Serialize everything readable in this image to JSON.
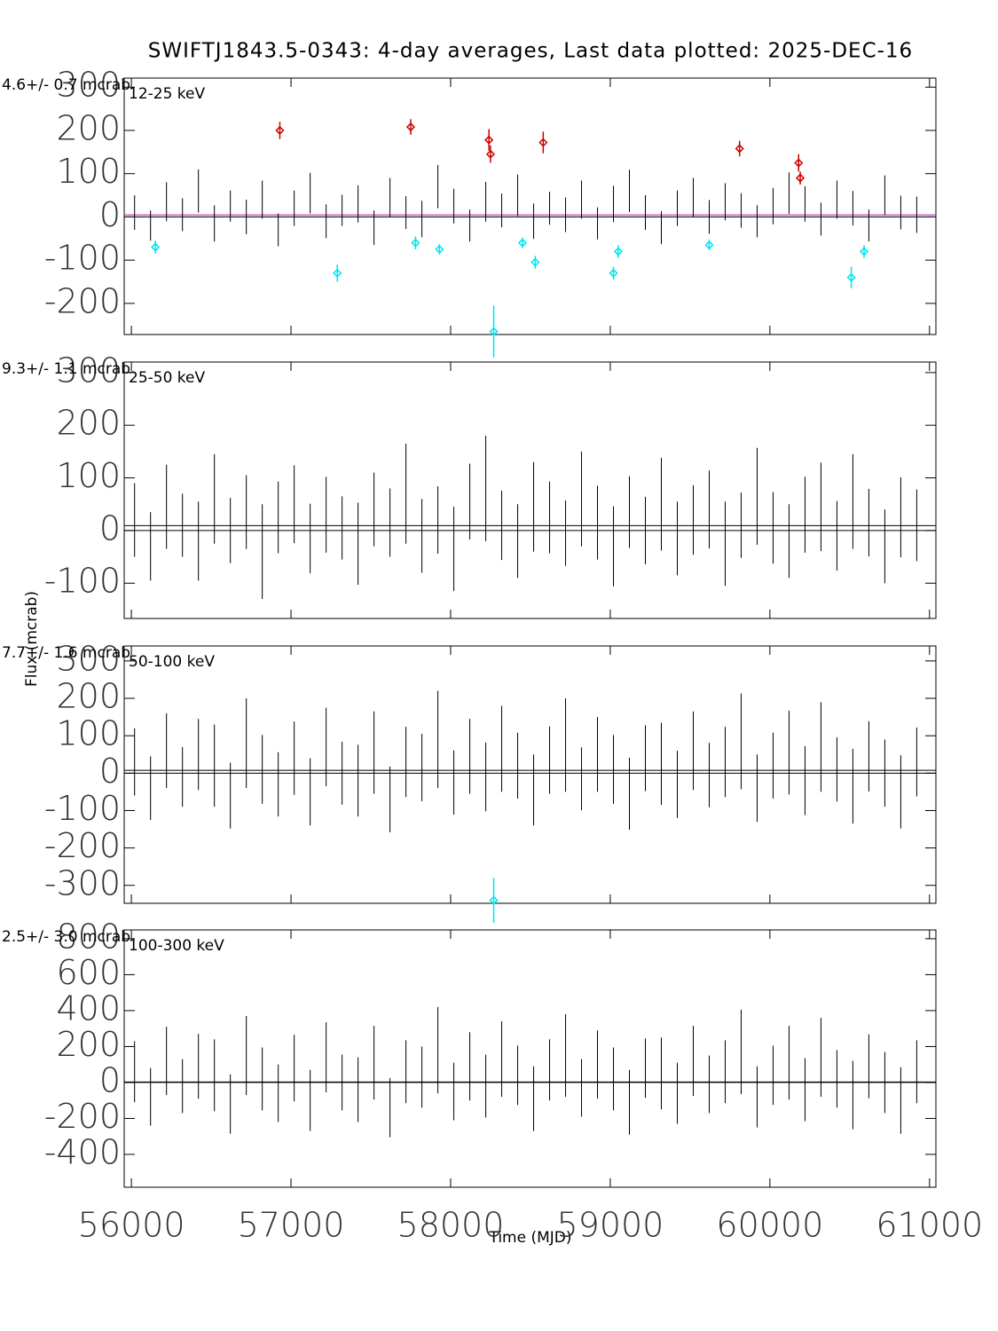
{
  "chart_data": {
    "type": "errorbar",
    "title": "SWIFTJ1843.5-0343:  4-day averages,  Last data plotted: 2025-DEC-16",
    "xlabel": "Time (MJD)",
    "ylabel": "Flux (mcrab)",
    "xlim": [
      55955,
      61040
    ],
    "xticks": [
      56000,
      57000,
      58000,
      59000,
      60000,
      61000
    ],
    "x": [
      56020,
      56120,
      56220,
      56320,
      56420,
      56520,
      56620,
      56720,
      56820,
      56920,
      57020,
      57120,
      57220,
      57320,
      57420,
      57520,
      57620,
      57720,
      57820,
      57920,
      58020,
      58120,
      58220,
      58320,
      58420,
      58520,
      58620,
      58720,
      58820,
      58920,
      59020,
      59120,
      59220,
      59320,
      59420,
      59520,
      59620,
      59720,
      59820,
      59920,
      60020,
      60120,
      60220,
      60320,
      60420,
      60520,
      60620,
      60720,
      60820,
      60920
    ],
    "panels": [
      {
        "band": "12-25 keV",
        "rate_label": "4.6+/- 0.7 mcrab",
        "mean": 4.6,
        "ylim": [
          -272,
          321
        ],
        "yticks": [
          -200,
          -100,
          0,
          100,
          200,
          300
        ],
        "values": [
          10,
          -20,
          35,
          5,
          60,
          -15,
          25,
          0,
          40,
          -30,
          20,
          55,
          -10,
          15,
          30,
          -25,
          45,
          10,
          -5,
          70,
          25,
          -20,
          35,
          15,
          50,
          -10,
          20,
          5,
          40,
          -15,
          30,
          60,
          10,
          -25,
          20,
          45,
          0,
          35,
          15,
          -10,
          25,
          55,
          30,
          -5,
          40,
          20,
          -20,
          50,
          10,
          5
        ],
        "errors": [
          40,
          35,
          45,
          38,
          50,
          42,
          36,
          40,
          44,
          38,
          41,
          47,
          39,
          36,
          43,
          40,
          45,
          38,
          42,
          50,
          40,
          37,
          46,
          39,
          48,
          41,
          38,
          40,
          44,
          37,
          42,
          49,
          40,
          38,
          41,
          45,
          39,
          43,
          40,
          37,
          42,
          48,
          41,
          38,
          44,
          40,
          37,
          46,
          39,
          42
        ],
        "highlights": [
          {
            "color": "#cc0000",
            "x": [
              56930,
              57750,
              58240,
              58250,
              58580,
              59810,
              60180,
              60190
            ],
            "values": [
              200,
              208,
              178,
              145,
              172,
              158,
              125,
              90
            ],
            "errors": [
              20,
              18,
              25,
              20,
              25,
              18,
              20,
              15
            ]
          },
          {
            "color": "#00e5ee",
            "x": [
              56150,
              57290,
              57780,
              57930,
              58270,
              58450,
              58530,
              59020,
              59050,
              59620,
              60510,
              60590
            ],
            "values": [
              -70,
              -130,
              -60,
              -75,
              -265,
              -60,
              -105,
              -130,
              -80,
              -65,
              -140,
              -80
            ],
            "errors": [
              15,
              20,
              15,
              12,
              60,
              12,
              15,
              15,
              15,
              12,
              25,
              15
            ]
          }
        ]
      },
      {
        "band": "25-50 keV",
        "rate_label": "9.3+/- 1.1 mcrab",
        "mean": 9.3,
        "ylim": [
          -167,
          320
        ],
        "yticks": [
          -100,
          0,
          100,
          200,
          300
        ],
        "values": [
          20,
          -30,
          45,
          10,
          -20,
          60,
          0,
          35,
          -40,
          25,
          50,
          -15,
          30,
          5,
          -25,
          40,
          15,
          70,
          -10,
          20,
          -35,
          55,
          80,
          10,
          -20,
          45,
          25,
          -5,
          60,
          15,
          -30,
          35,
          0,
          50,
          -15,
          20,
          40,
          -25,
          10,
          65,
          5,
          -20,
          30,
          45,
          -10,
          55,
          15,
          -30,
          25,
          10
        ],
        "errors": [
          70,
          65,
          80,
          60,
          75,
          85,
          62,
          70,
          90,
          68,
          74,
          66,
          72,
          60,
          78,
          70,
          65,
          95,
          70,
          64,
          80,
          72,
          100,
          66,
          70,
          85,
          68,
          62,
          90,
          70,
          76,
          68,
          64,
          88,
          70,
          66,
          74,
          80,
          62,
          92,
          68,
          70,
          72,
          84,
          66,
          90,
          64,
          70,
          76,
          68
        ],
        "highlights": []
      },
      {
        "band": "50-100 keV",
        "rate_label": "7.7+/- 1.6 mcrab",
        "mean": 7.7,
        "ylim": [
          -348,
          340
        ],
        "yticks": [
          -300,
          -200,
          -100,
          0,
          100,
          200,
          300
        ],
        "values": [
          30,
          -40,
          60,
          -10,
          50,
          20,
          -60,
          80,
          10,
          -30,
          40,
          -50,
          70,
          0,
          -20,
          55,
          -70,
          30,
          15,
          90,
          -25,
          45,
          -10,
          65,
          20,
          -45,
          35,
          75,
          -15,
          50,
          10,
          -55,
          40,
          25,
          -30,
          60,
          -5,
          30,
          85,
          -40,
          20,
          55,
          -20,
          70,
          10,
          -35,
          45,
          0,
          -50,
          30
        ],
        "errors": [
          90,
          85,
          100,
          80,
          95,
          110,
          88,
          120,
          92,
          86,
          98,
          90,
          105,
          84,
          96,
          110,
          88,
          94,
          90,
          130,
          86,
          100,
          92,
          115,
          88,
          95,
          90,
          125,
          84,
          100,
          92,
          96,
          88,
          110,
          90,
          105,
          86,
          94,
          128,
          90,
          88,
          112,
          92,
          120,
          86,
          100,
          94,
          90,
          98,
          92
        ],
        "highlights": [
          {
            "color": "#00e5ee",
            "x": [
              58270
            ],
            "values": [
              -340
            ],
            "errors": [
              60
            ]
          }
        ]
      },
      {
        "band": "100-300 keV",
        "rate_label": "2.5+/- 3.0 mcrab",
        "mean": 2.5,
        "ylim": [
          -583,
          849
        ],
        "yticks": [
          -400,
          -200,
          0,
          200,
          400,
          600,
          800
        ],
        "values": [
          60,
          -80,
          120,
          -20,
          90,
          40,
          -120,
          150,
          20,
          -60,
          80,
          -100,
          140,
          0,
          -40,
          110,
          -140,
          60,
          30,
          180,
          -50,
          90,
          -20,
          130,
          40,
          -90,
          70,
          150,
          -30,
          100,
          20,
          -110,
          80,
          50,
          -60,
          120,
          -10,
          60,
          170,
          -80,
          40,
          110,
          -40,
          140,
          20,
          -70,
          90,
          0,
          -100,
          60
        ],
        "errors": [
          170,
          160,
          190,
          150,
          180,
          200,
          165,
          220,
          175,
          160,
          185,
          170,
          195,
          155,
          180,
          205,
          165,
          175,
          170,
          240,
          160,
          190,
          175,
          210,
          165,
          180,
          170,
          230,
          160,
          190,
          175,
          180,
          165,
          200,
          170,
          195,
          160,
          175,
          235,
          170,
          165,
          205,
          175,
          220,
          160,
          190,
          178,
          170,
          185,
          175
        ],
        "highlights": []
      }
    ]
  }
}
